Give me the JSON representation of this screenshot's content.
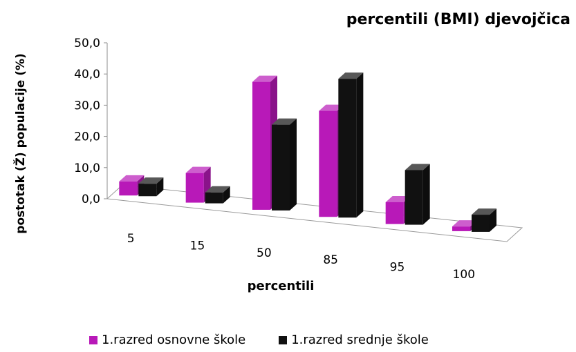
{
  "chart_data": {
    "type": "bar",
    "title": "percentili (BMI) djevojčica",
    "xlabel": "percentili",
    "ylabel": "postotak (Ž) populacije  (%)",
    "categories": [
      "5",
      "15",
      "50",
      "85",
      "95",
      "100"
    ],
    "y_ticks": [
      "0,0",
      "10,0",
      "20,0",
      "30,0",
      "40,0",
      "50,0"
    ],
    "ylim": [
      0,
      50
    ],
    "grid": false,
    "legend_position": "bottom",
    "series": [
      {
        "name": "1.razred osnovne škole",
        "color": "#b819b8",
        "values": [
          4.5,
          9.5,
          41.0,
          34.0,
          7.0,
          1.5
        ]
      },
      {
        "name": "1.razred srednje škole",
        "color": "#111111",
        "values": [
          4.0,
          3.5,
          27.5,
          44.5,
          17.5,
          5.5
        ]
      }
    ]
  }
}
